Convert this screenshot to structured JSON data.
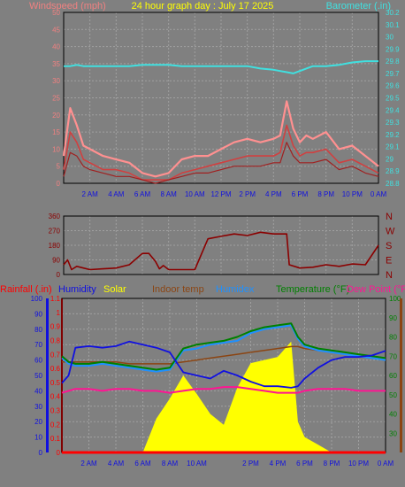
{
  "title": "24 hour graph day : July 17 2025",
  "colors": {
    "background": "#808080",
    "grid": "#a0a0a0",
    "wind_label": "#f08080",
    "barometer": "#40e0e0",
    "direction": "#8b0000",
    "rain": "#ff0000",
    "humidity": "#1010e0",
    "solar": "#ffff00",
    "indoor_temp": "#8b4513",
    "humidex": "#1e90ff",
    "temperature": "#008000",
    "dew_point": "#ff1493"
  },
  "chart_data": [
    {
      "type": "line",
      "name": "wind-barometer",
      "title": "24 hour graph day : July 17 2025",
      "left_axis_label": "Windspeed (mph)",
      "right_axis_label": "Barometer (.in)",
      "x_ticks": [
        "2 AM",
        "4 AM",
        "6 AM",
        "8 AM",
        "10 AM",
        "12 PM",
        "2 PM",
        "4 PM",
        "6 PM",
        "8 PM",
        "10 PM",
        "0 AM"
      ],
      "left_ylim": [
        0,
        50
      ],
      "left_ticks": [
        "0",
        "5",
        "10",
        "15",
        "20",
        "25",
        "30",
        "35",
        "40",
        "45",
        "50"
      ],
      "right_ylim": [
        28.8,
        30.2
      ],
      "right_ticks": [
        "28.8",
        "28.9",
        "29",
        "29.1",
        "29.2",
        "29.3",
        "29.4",
        "29.5",
        "29.6",
        "29.7",
        "29.8",
        "29.9",
        "30",
        "30.1",
        "30.2"
      ],
      "x_hours": [
        0,
        0.5,
        1,
        1.5,
        2,
        3,
        4,
        5,
        6,
        7,
        8,
        9,
        10,
        11,
        12,
        13,
        14,
        15,
        16,
        16.5,
        17,
        17.5,
        18,
        18.5,
        19,
        20,
        21,
        22,
        23,
        24
      ],
      "barometer": [
        29.76,
        29.76,
        29.77,
        29.76,
        29.76,
        29.76,
        29.76,
        29.76,
        29.77,
        29.77,
        29.77,
        29.76,
        29.76,
        29.76,
        29.76,
        29.76,
        29.76,
        29.74,
        29.73,
        29.72,
        29.71,
        29.7,
        29.72,
        29.74,
        29.76,
        29.76,
        29.77,
        29.79,
        29.8,
        29.8
      ],
      "wind_gust": [
        8,
        22,
        17,
        11,
        10,
        8,
        7,
        6,
        3,
        2,
        3,
        7,
        8,
        8,
        10,
        12,
        13,
        12,
        13,
        14,
        24,
        16,
        12,
        14,
        13,
        15,
        10,
        11,
        8,
        5
      ],
      "wind_speed": [
        4,
        15,
        12,
        7,
        6,
        4,
        4,
        3,
        1,
        1,
        1,
        3,
        4,
        5,
        6,
        7,
        8,
        8,
        8,
        9,
        17,
        11,
        8,
        9,
        9,
        10,
        6,
        7,
        5,
        3
      ],
      "wind_avg": [
        2,
        9,
        8,
        5,
        4,
        3,
        2,
        2,
        1,
        0,
        1,
        2,
        3,
        3,
        4,
        5,
        5,
        5,
        6,
        6,
        12,
        8,
        6,
        6,
        6,
        7,
        4,
        5,
        3,
        2
      ]
    },
    {
      "type": "line",
      "name": "wind-direction",
      "right_labels": [
        "N",
        "W",
        "S",
        "E",
        "N"
      ],
      "ylim": [
        0,
        360
      ],
      "y_ticks": [
        "0",
        "90",
        "180",
        "270",
        "360"
      ],
      "x_hours": [
        0,
        0.3,
        0.6,
        1,
        1.5,
        2,
        3,
        4,
        5,
        6,
        6.5,
        7,
        7.3,
        7.6,
        8,
        9,
        10,
        11,
        12,
        13,
        14,
        15,
        16,
        17,
        17.2,
        18,
        19,
        20,
        21,
        22,
        23,
        24
      ],
      "direction": [
        60,
        90,
        30,
        50,
        40,
        30,
        35,
        40,
        60,
        130,
        130,
        80,
        35,
        55,
        30,
        30,
        30,
        220,
        235,
        250,
        240,
        260,
        250,
        250,
        60,
        40,
        45,
        60,
        50,
        65,
        60,
        180
      ]
    },
    {
      "type": "line",
      "name": "temperature-humidity-solar",
      "legend": [
        "Rainfall (.in)",
        "Humidity",
        "Solar",
        "Indoor temp",
        "Humidex",
        "Temperature (°F)",
        "Dew Point (°F)"
      ],
      "x_ticks": [
        "2 AM",
        "4 AM",
        "6 AM",
        "8 AM",
        "10 AM",
        "2 PM",
        "4 PM",
        "6 PM",
        "8 PM",
        "10 PM",
        "0 AM"
      ],
      "humidity_ylim": [
        0,
        100
      ],
      "humidity_ticks": [
        "0",
        "10",
        "20",
        "30",
        "40",
        "50",
        "60",
        "70",
        "80",
        "90",
        "100"
      ],
      "rain_ylim": [
        0,
        1.1
      ],
      "rain_ticks": [
        "0",
        "0.1",
        "0.2",
        "0.3",
        "0.4",
        "0.5",
        "0.6",
        "0.7",
        "0.8",
        "0.9",
        "1",
        "1.1"
      ],
      "temp_ylim": [
        20,
        100
      ],
      "temp_ticks": [
        "30",
        "40",
        "50",
        "60",
        "70",
        "80",
        "90",
        "100"
      ],
      "x_hours": [
        0,
        0.5,
        1,
        2,
        3,
        4,
        5,
        6,
        7,
        8,
        9,
        10,
        11,
        12,
        13,
        14,
        15,
        16,
        17,
        17.5,
        18,
        19,
        20,
        21,
        22,
        23,
        24
      ],
      "humidity": [
        45,
        50,
        68,
        69,
        68,
        69,
        72,
        70,
        68,
        65,
        52,
        50,
        48,
        53,
        50,
        46,
        43,
        43,
        42,
        43,
        48,
        55,
        60,
        62,
        62,
        63,
        66
      ],
      "temperature": [
        70,
        67,
        66,
        66,
        67,
        66,
        65,
        64,
        63,
        64,
        74,
        76,
        77,
        78,
        80,
        83,
        85,
        86,
        87,
        80,
        76,
        74,
        73,
        72,
        71,
        70,
        69
      ],
      "humidex": [
        69,
        66,
        65,
        65,
        66,
        65,
        64,
        63,
        62,
        63,
        73,
        74,
        76,
        77,
        78,
        82,
        84,
        85,
        86,
        79,
        75,
        73,
        72,
        71,
        70,
        69,
        68
      ],
      "indoor_temp": [
        67,
        67,
        67,
        67,
        67,
        67,
        66,
        66,
        66,
        66,
        67,
        68,
        69,
        70,
        71,
        72,
        73,
        74,
        75,
        75,
        74,
        73,
        72,
        71,
        70,
        70,
        69
      ],
      "dew_point": [
        51,
        52,
        53,
        53,
        52,
        53,
        53,
        52,
        52,
        51,
        52,
        53,
        53,
        54,
        54,
        53,
        52,
        51,
        51,
        51,
        52,
        53,
        53,
        53,
        52,
        52,
        52
      ],
      "solar_pct": [
        0,
        0,
        0,
        0,
        0,
        0,
        0,
        0,
        0.22,
        0.35,
        0.5,
        0.38,
        0.25,
        0.18,
        0.42,
        0.58,
        0.6,
        0.62,
        0.72,
        0.2,
        0.1,
        0.05,
        0,
        0,
        0,
        0,
        0
      ],
      "rainfall": [
        0,
        0,
        0,
        0,
        0,
        0,
        0,
        0,
        0,
        0,
        0,
        0,
        0,
        0,
        0,
        0,
        0,
        0,
        0,
        0,
        0,
        0,
        0,
        0,
        0,
        0,
        0
      ]
    }
  ]
}
